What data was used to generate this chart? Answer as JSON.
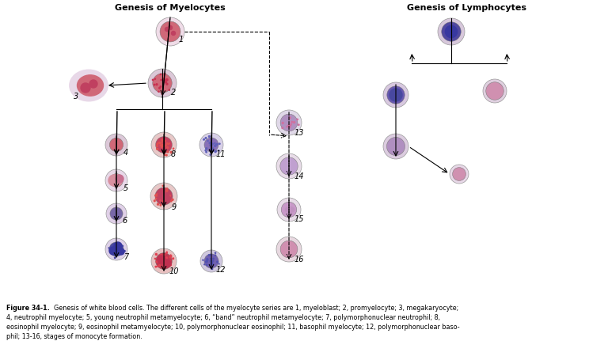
{
  "title_left": "Genesis of Myelocytes",
  "title_right": "Genesis of Lymphocytes",
  "caption": "Figure 34-1.  Genesis of white blood cells. The different cells of the myelocyte series are 1, myeloblast; 2, promyelocyte; 3, megakaryocyte;\n4, neutrophil myelocyte; 5, young neutrophil metamyelocyte; 6, “band” neutrophil metamyelocyte; 7, polymorphonuclear neutrophil; 8,\neosinophil myelocyte; 9, eosinophil metamyelocyte; 10, polymorphonuclear eosinophil; 11, basophil myelocyte; 12, polymorphonuclear baso-\nphil; 13-16, stages of monocyte formation.",
  "background": "#ffffff",
  "cell_colors": {
    "outer_light": "#e8d0e0",
    "outer_medium": "#d4b0c8",
    "nucleus_pink": "#d46080",
    "nucleus_dark_red": "#b03050",
    "nucleus_purple": "#6050a0",
    "nucleus_dark_purple": "#3030a0",
    "granules_red": "#c03050",
    "granules_purple": "#5050b0",
    "cytoplasm_light": "#f0d8e8"
  }
}
